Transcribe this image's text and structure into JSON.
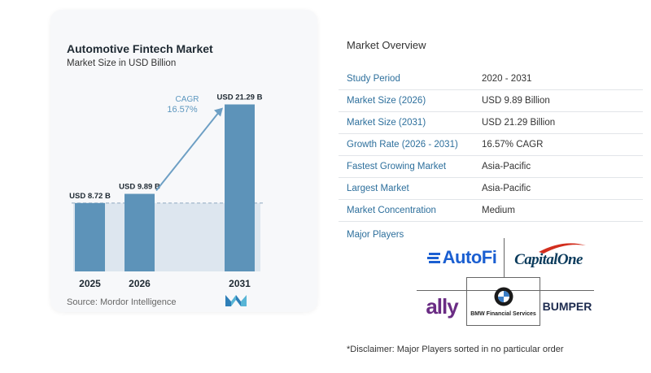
{
  "chart": {
    "title": "Automotive Fintech Market",
    "subtitle": "Market Size in USD Billion",
    "source": "Source: Mordor Intelligence",
    "cagr_label": "CAGR",
    "cagr_value": "16.57%",
    "colors": {
      "bar": "#5d93b9",
      "bar_top": "#4f86ae",
      "band": "#dde6ef",
      "arrow": "#6d9fc4",
      "cagr": "#5d97bf"
    }
  },
  "chart_data": {
    "type": "bar",
    "title": "Automotive Fintech Market",
    "subtitle": "Market Size in USD Billion",
    "categories": [
      "2025",
      "2026",
      "2031"
    ],
    "values": [
      8.72,
      9.89,
      21.29
    ],
    "data_labels": [
      "USD 8.72 B",
      "USD 9.89 B",
      "USD 21.29 B"
    ],
    "unit": "USD Billion",
    "annotation": {
      "text": "CAGR",
      "value": "16.57%"
    },
    "ylim": [
      0,
      23
    ]
  },
  "overview": {
    "title": "Market Overview",
    "rows": [
      {
        "label": "Study Period",
        "value": "2020 - 2031"
      },
      {
        "label": "Market Size (2026)",
        "value": "USD 9.89 Billion"
      },
      {
        "label": "Market Size (2031)",
        "value": "USD 21.29 Billion"
      },
      {
        "label": "Growth Rate (2026 - 2031)",
        "value": "16.57% CAGR"
      },
      {
        "label": "Fastest Growing Market",
        "value": "Asia-Pacific"
      },
      {
        "label": "Largest Market",
        "value": "Asia-Pacific"
      },
      {
        "label": "Market Concentration",
        "value": "Medium"
      }
    ]
  },
  "players": {
    "title": "Major Players",
    "autofi": "AutoFi",
    "capitalone": "CapitalOne",
    "ally": "ally",
    "bmw": "BMW Financial Services",
    "bumper": "BUMPER"
  },
  "disclaimer": "*Disclaimer: Major Players sorted in no particular order"
}
